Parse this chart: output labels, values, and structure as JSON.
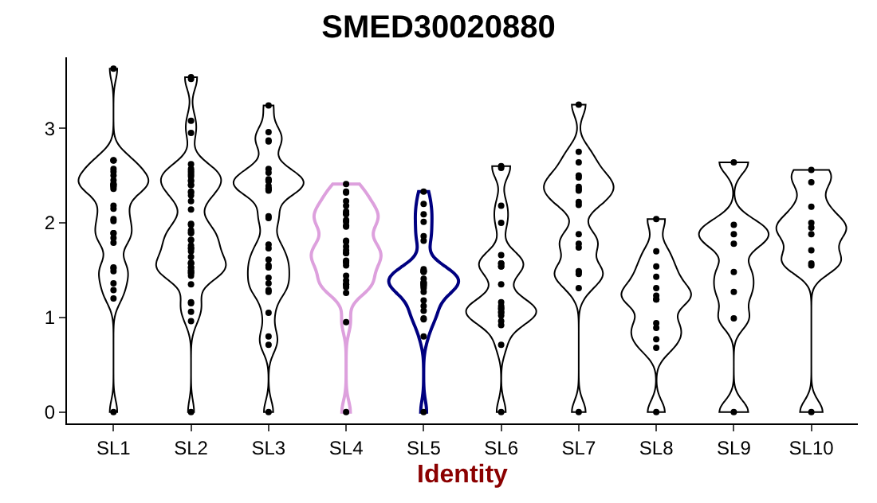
{
  "chart_data": {
    "type": "scatter",
    "title": "SMED30020880",
    "xlabel": "Identity",
    "categories": [
      "SL1",
      "SL2",
      "SL3",
      "SL4",
      "SL5",
      "SL6",
      "SL7",
      "SL8",
      "SL9",
      "SL10"
    ],
    "ylim": [
      -0.12,
      3.75
    ],
    "yticks": [
      0,
      1,
      2,
      3
    ],
    "colors": [
      null,
      null,
      null,
      "#dda0dd",
      "#000080",
      null,
      null,
      null,
      null,
      null
    ],
    "grid": false,
    "marker": "circle",
    "series": [
      {
        "color": "#000000",
        "x": [
          "SL1",
          "SL1",
          "SL1",
          "SL1",
          "SL1",
          "SL1",
          "SL1",
          "SL1",
          "SL1",
          "SL1",
          "SL1",
          "SL1",
          "SL1",
          "SL1",
          "SL1",
          "SL1",
          "SL1",
          "SL1",
          "SL1",
          "SL1",
          "SL1",
          "SL1",
          "SL1",
          "SL1",
          "SL1",
          "SL1",
          "SL1",
          "SL1",
          "SL1",
          "SL2",
          "SL2",
          "SL2",
          "SL2",
          "SL2",
          "SL2",
          "SL2",
          "SL2",
          "SL2",
          "SL2",
          "SL2",
          "SL2",
          "SL2",
          "SL2",
          "SL2",
          "SL2",
          "SL2",
          "SL2",
          "SL2",
          "SL2",
          "SL2",
          "SL2",
          "SL2",
          "SL2",
          "SL2",
          "SL2",
          "SL2",
          "SL2",
          "SL2",
          "SL2",
          "SL2",
          "SL2",
          "SL2",
          "SL2",
          "SL2",
          "SL2",
          "SL2",
          "SL2",
          "SL2",
          "SL2",
          "SL2",
          "SL2",
          "SL2",
          "SL2",
          "SL2",
          "SL2",
          "SL2",
          "SL3",
          "SL3",
          "SL3",
          "SL3",
          "SL3",
          "SL3",
          "SL3",
          "SL3",
          "SL3",
          "SL3",
          "SL3",
          "SL3",
          "SL3",
          "SL3",
          "SL3",
          "SL3",
          "SL3",
          "SL3",
          "SL3",
          "SL3",
          "SL3",
          "SL3",
          "SL3",
          "SL3",
          "SL3",
          "SL3",
          "SL3",
          "SL3",
          "SL4",
          "SL4",
          "SL4",
          "SL4",
          "SL4",
          "SL4",
          "SL4",
          "SL4",
          "SL4",
          "SL4",
          "SL4",
          "SL4",
          "SL4",
          "SL4",
          "SL4",
          "SL4",
          "SL4",
          "SL4",
          "SL4",
          "SL4",
          "SL4",
          "SL4",
          "SL4",
          "SL4",
          "SL4",
          "SL4",
          "SL4",
          "SL4",
          "SL4",
          "SL4",
          "SL5",
          "SL5",
          "SL5",
          "SL5",
          "SL5",
          "SL5",
          "SL5",
          "SL5",
          "SL5",
          "SL5",
          "SL5",
          "SL5",
          "SL5",
          "SL5",
          "SL5",
          "SL5",
          "SL5",
          "SL5",
          "SL5",
          "SL5",
          "SL5",
          "SL5",
          "SL5",
          "SL5",
          "SL5",
          "SL5",
          "SL5",
          "SL6",
          "SL6",
          "SL6",
          "SL6",
          "SL6",
          "SL6",
          "SL6",
          "SL6",
          "SL6",
          "SL6",
          "SL6",
          "SL6",
          "SL6",
          "SL6",
          "SL6",
          "SL6",
          "SL6",
          "SL6",
          "SL6",
          "SL6",
          "SL6",
          "SL7",
          "SL7",
          "SL7",
          "SL7",
          "SL7",
          "SL7",
          "SL7",
          "SL7",
          "SL7",
          "SL7",
          "SL7",
          "SL7",
          "SL7",
          "SL7",
          "SL7",
          "SL7",
          "SL7",
          "SL7",
          "SL8",
          "SL8",
          "SL8",
          "SL8",
          "SL8",
          "SL8",
          "SL8",
          "SL8",
          "SL8",
          "SL8",
          "SL8",
          "SL8",
          "SL8",
          "SL9",
          "SL9",
          "SL9",
          "SL9",
          "SL9",
          "SL9",
          "SL9",
          "SL9",
          "SL10",
          "SL10",
          "SL10",
          "SL10",
          "SL10",
          "SL10",
          "SL10",
          "SL10",
          "SL10",
          "SL10"
        ],
        "values": [
          1.36,
          2.04,
          2.02,
          2.5,
          2.54,
          2.39,
          1.84,
          1.53,
          1.49,
          2.45,
          2.4,
          2.41,
          2.66,
          2.66,
          1.89,
          1.79,
          2.36,
          1.29,
          1.2,
          3.63,
          2.41,
          2.38,
          2.18,
          2.15,
          1.89,
          1.52,
          2.66,
          2.57,
          0,
          3.54,
          3.52,
          3.08,
          2.95,
          2.62,
          2.55,
          2.57,
          2.53,
          2.45,
          2.4,
          2.32,
          2.29,
          2.4,
          2.49,
          2.51,
          2.44,
          2.33,
          2.14,
          2.23,
          1.7,
          1.73,
          1.73,
          1.82,
          1.89,
          1.92,
          1.99,
          1.98,
          1.82,
          1.9,
          1.76,
          1.58,
          1.53,
          1.49,
          1.64,
          1.57,
          1.53,
          1.5,
          1.35,
          1.47,
          1.47,
          1.57,
          1.44,
          1.06,
          1.15,
          1.16,
          0.96,
          0,
          3.24,
          2.96,
          2.57,
          2.53,
          2.44,
          2.36,
          2.45,
          2.39,
          2.34,
          2.87,
          2.86,
          2.46,
          2.36,
          2.07,
          2.05,
          1.61,
          1.42,
          1.27,
          1.05,
          0.8,
          0.71,
          1.55,
          1.36,
          1.53,
          1.73,
          1.77,
          1.29,
          0,
          2.41,
          2.01,
          2.18,
          2.09,
          1.96,
          1.81,
          1.8,
          1.59,
          1.68,
          1.6,
          1.35,
          1.26,
          1.32,
          1.39,
          0.95,
          2.33,
          2.32,
          2.23,
          2.12,
          2.1,
          2.03,
          1.97,
          1.75,
          1.71,
          1.68,
          1.44,
          1.35,
          1.58,
          1.55,
          0,
          2.33,
          2.09,
          2.01,
          1.81,
          1.49,
          1.48,
          1.49,
          1.37,
          1.27,
          1.31,
          1.35,
          1.34,
          1.33,
          1.18,
          1.41,
          0.99,
          1.07,
          1.49,
          1.51,
          1.36,
          1.12,
          0.98,
          0.8,
          1.86,
          2.2,
          1.37,
          0,
          2.6,
          2.58,
          2.18,
          2.0,
          1.57,
          1.54,
          1.57,
          1.54,
          1.35,
          1.66,
          1.16,
          1.1,
          1.06,
          1.05,
          1.09,
          1.12,
          1.02,
          0.92,
          0.96,
          0.71,
          0,
          3.25,
          2.75,
          2.5,
          2.48,
          2.36,
          2.34,
          2.38,
          2.22,
          2.19,
          2.64,
          1.88,
          1.74,
          1.46,
          1.31,
          1.48,
          1.49,
          1.78,
          0,
          2.04,
          1.7,
          1.54,
          1.43,
          1.31,
          1.23,
          0.94,
          0.77,
          0.68,
          1.19,
          1.19,
          0.89,
          0,
          2.64,
          1.98,
          1.88,
          1.78,
          1.48,
          1.27,
          0.99,
          0,
          2.56,
          2.43,
          2.17,
          2.0,
          1.95,
          1.88,
          1.55,
          1.71,
          1.57,
          0
        ]
      }
    ]
  }
}
